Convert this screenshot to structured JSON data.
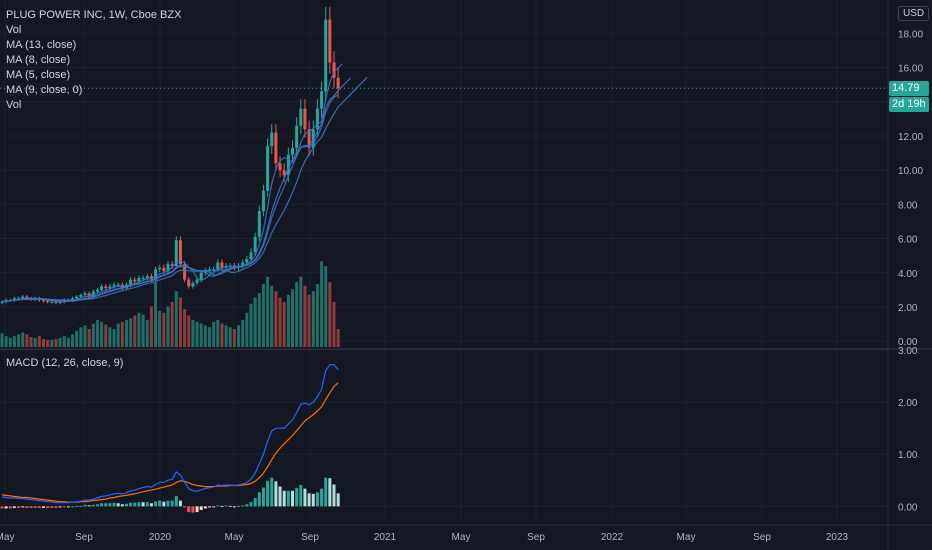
{
  "legend": {
    "title": "PLUG POWER INC, 1W, Cboe BZX",
    "vol": "Vol",
    "ma13": "MA (13, close)",
    "ma8": "MA (8, close)",
    "ma5": "MA (5, close)",
    "ma9": "MA (9, close, 0)",
    "vol2": "Vol"
  },
  "macd_legend": "MACD (12, 26, close, 9)",
  "currency": "USD",
  "last_price_label": "14.79",
  "countdown_label": "2d 19h",
  "colors": {
    "background": "#131722",
    "grid": "#1e222d",
    "up": "#26a69a",
    "down": "#ef5350",
    "up_volume": "#1f6f66",
    "down_volume": "#8e3b3b",
    "ma": "#3a74c0",
    "macd": "#2962ff",
    "signal": "#ff6d00",
    "price_tag": "#26a69a"
  },
  "chart_data": [
    {
      "type": "candlestick",
      "title": "PLUG POWER INC, 1W, Cboe BZX",
      "y_ticks": [
        "0.00",
        "2.00",
        "4.00",
        "6.00",
        "8.00",
        "10.00",
        "12.00",
        "14.00",
        "16.00",
        "18.00"
      ],
      "ylim": [
        -0.4,
        19.6
      ],
      "x_ticks": [
        "May",
        "Sep",
        "2020",
        "May",
        "Sep",
        "2021",
        "May",
        "Sep",
        "2022",
        "May",
        "Sep",
        "2023"
      ],
      "last_price": 14.79,
      "price_series_close": [
        2.3,
        2.4,
        2.4,
        2.5,
        2.5,
        2.6,
        2.5,
        2.45,
        2.5,
        2.4,
        2.35,
        2.3,
        2.3,
        2.25,
        2.3,
        2.4,
        2.4,
        2.5,
        2.6,
        2.7,
        2.8,
        2.6,
        2.9,
        3.0,
        3.2,
        3.1,
        3.2,
        3.3,
        3.3,
        3.1,
        3.3,
        3.6,
        3.5,
        3.7,
        3.7,
        3.8,
        3.6,
        4.2,
        4.3,
        4.1,
        4.5,
        4.4,
        5.9,
        4.5,
        3.6,
        3.2,
        3.4,
        3.6,
        4.0,
        4.1,
        4.2,
        4.2,
        4.6,
        4.3,
        4.4,
        4.4,
        4.3,
        4.4,
        4.6,
        4.8,
        5.2,
        6.1,
        7.6,
        8.8,
        11.4,
        12.2,
        10.4,
        10.0,
        9.7,
        10.9,
        11.3,
        12.6,
        13.6,
        12.4,
        11.3,
        12.4,
        13.6,
        14.6,
        18.8,
        16.3,
        15.4,
        14.79
      ],
      "volume_relative": [
        0.15,
        0.12,
        0.1,
        0.12,
        0.14,
        0.16,
        0.14,
        0.11,
        0.1,
        0.12,
        0.09,
        0.08,
        0.08,
        0.09,
        0.1,
        0.12,
        0.1,
        0.14,
        0.18,
        0.22,
        0.24,
        0.2,
        0.26,
        0.3,
        0.28,
        0.25,
        0.22,
        0.2,
        0.26,
        0.28,
        0.3,
        0.32,
        0.35,
        0.38,
        0.36,
        0.3,
        0.45,
        0.72,
        0.4,
        0.38,
        0.45,
        0.5,
        0.62,
        0.55,
        0.42,
        0.35,
        0.3,
        0.28,
        0.26,
        0.24,
        0.22,
        0.28,
        0.3,
        0.26,
        0.24,
        0.22,
        0.2,
        0.24,
        0.3,
        0.38,
        0.48,
        0.55,
        0.6,
        0.7,
        0.78,
        0.68,
        0.62,
        0.55,
        0.5,
        0.58,
        0.64,
        0.72,
        0.78,
        0.68,
        0.58,
        0.62,
        0.7,
        0.95,
        0.9,
        0.72,
        0.5,
        0.2
      ],
      "moving_averages": [
        "MA (13, close)",
        "MA (8, close)",
        "MA (5, close)",
        "MA (9, close, 0)"
      ]
    },
    {
      "type": "macd",
      "title": "MACD (12, 26, close, 9)",
      "y_ticks": [
        "0.00",
        "1.00",
        "2.00",
        "3.00"
      ],
      "ylim": [
        -0.3,
        3.0
      ],
      "series": [
        {
          "name": "MACD",
          "values": [
            0.18,
            0.17,
            0.16,
            0.16,
            0.15,
            0.15,
            0.14,
            0.13,
            0.12,
            0.11,
            0.1,
            0.09,
            0.08,
            0.07,
            0.07,
            0.07,
            0.07,
            0.08,
            0.09,
            0.1,
            0.12,
            0.12,
            0.14,
            0.16,
            0.19,
            0.2,
            0.22,
            0.24,
            0.25,
            0.24,
            0.26,
            0.3,
            0.31,
            0.34,
            0.36,
            0.38,
            0.37,
            0.42,
            0.46,
            0.46,
            0.5,
            0.52,
            0.66,
            0.6,
            0.46,
            0.34,
            0.3,
            0.29,
            0.32,
            0.34,
            0.36,
            0.37,
            0.41,
            0.4,
            0.41,
            0.41,
            0.4,
            0.41,
            0.43,
            0.46,
            0.52,
            0.64,
            0.82,
            1.0,
            1.25,
            1.45,
            1.5,
            1.5,
            1.5,
            1.58,
            1.66,
            1.8,
            1.96,
            1.98,
            1.95,
            2.0,
            2.1,
            2.25,
            2.6,
            2.72,
            2.72,
            2.62
          ]
        },
        {
          "name": "Signal",
          "values": [
            0.22,
            0.21,
            0.2,
            0.19,
            0.18,
            0.17,
            0.17,
            0.16,
            0.15,
            0.14,
            0.13,
            0.12,
            0.11,
            0.1,
            0.09,
            0.09,
            0.08,
            0.08,
            0.08,
            0.09,
            0.09,
            0.1,
            0.11,
            0.12,
            0.13,
            0.14,
            0.16,
            0.17,
            0.19,
            0.2,
            0.21,
            0.23,
            0.24,
            0.26,
            0.28,
            0.3,
            0.31,
            0.33,
            0.35,
            0.37,
            0.39,
            0.41,
            0.46,
            0.49,
            0.48,
            0.45,
            0.42,
            0.4,
            0.39,
            0.38,
            0.38,
            0.38,
            0.39,
            0.39,
            0.39,
            0.4,
            0.4,
            0.4,
            0.41,
            0.42,
            0.44,
            0.48,
            0.55,
            0.64,
            0.76,
            0.9,
            1.02,
            1.12,
            1.2,
            1.28,
            1.36,
            1.45,
            1.55,
            1.64,
            1.7,
            1.76,
            1.83,
            1.91,
            2.05,
            2.18,
            2.3,
            2.37
          ]
        }
      ]
    }
  ]
}
